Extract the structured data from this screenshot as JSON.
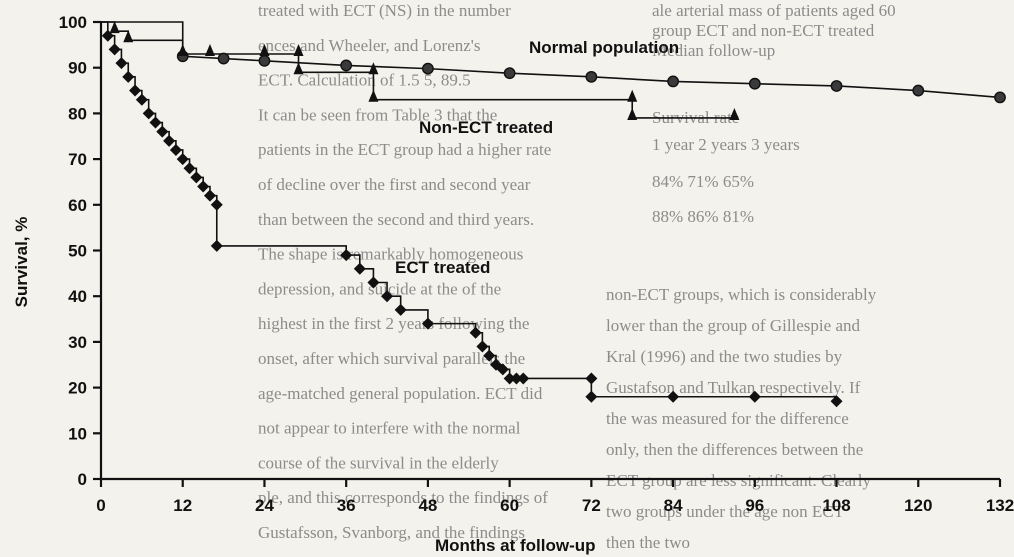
{
  "chart_data": {
    "type": "line",
    "title": "",
    "xlabel": "Months at follow-up",
    "ylabel": "Survival, %",
    "xlim": [
      0,
      132
    ],
    "ylim": [
      0,
      100
    ],
    "xticks": [
      0,
      12,
      24,
      36,
      48,
      60,
      72,
      84,
      96,
      108,
      120,
      132
    ],
    "yticks": [
      0,
      10,
      20,
      30,
      40,
      50,
      60,
      70,
      80,
      90,
      100
    ],
    "grid": false,
    "legend": "none (series labelled directly on plot)",
    "series": [
      {
        "name": "Normal population",
        "marker": "filled circle",
        "color": "#111111",
        "step_x": [
          0,
          12,
          12,
          132
        ],
        "x": [
          0,
          12,
          18,
          24,
          36,
          48,
          60,
          72,
          84,
          96,
          108,
          120,
          132
        ],
        "y": [
          100,
          92.5,
          92,
          91.5,
          90.5,
          89.8,
          88.8,
          88,
          87,
          86.5,
          86,
          85,
          83.5
        ]
      },
      {
        "name": "Non-ECT treated",
        "marker": "triangle",
        "color": "#111111",
        "x": [
          0,
          2,
          4,
          12,
          16,
          24,
          29,
          29,
          40,
          40,
          78,
          78,
          93
        ],
        "y": [
          100,
          98,
          96,
          93,
          93,
          93,
          93,
          89,
          89,
          83,
          83,
          79,
          79
        ]
      },
      {
        "name": "ECT treated",
        "marker": "filled diamond",
        "color": "#111111",
        "x": [
          0,
          1,
          2,
          3,
          4,
          5,
          6,
          7,
          8,
          9,
          10,
          11,
          12,
          13,
          14,
          15,
          16,
          17,
          17,
          36,
          38,
          40,
          42,
          44,
          48,
          55,
          56,
          57,
          58,
          59,
          60,
          61,
          62,
          72,
          72,
          84,
          96,
          108
        ],
        "y": [
          100,
          97,
          94,
          91,
          88,
          85,
          83,
          80,
          78,
          76,
          74,
          72,
          70,
          68,
          66,
          64,
          62,
          60,
          51,
          49,
          46,
          43,
          40,
          37,
          34,
          32,
          29,
          27,
          25,
          24,
          22,
          22,
          22,
          22,
          18,
          18,
          18,
          17
        ]
      }
    ],
    "series_labels": {
      "normal": "Normal population",
      "non_ect": "Non-ECT treated",
      "ect": "ECT treated"
    }
  },
  "background_text": {
    "left_column": [
      "treated with ECT (NS) in the number",
      "ences and Wheeler, and Lorenz's",
      "ECT. Calculation of 1.5 5, 89.5",
      "It can be seen from Table 3 that the",
      "patients in the ECT group had a higher rate",
      "of decline over the first and second year",
      "than between the second and third years.",
      "The shape is remarkably homogeneous",
      "depression, and suicide at the of the",
      "highest in the first 2 years following the",
      "onset, after which survival parallels the",
      "age-matched general population. ECT did",
      "not appear to interfere with the normal",
      "course of the survival in the elderly",
      "ple, and this corresponds to the findings of",
      "Gustafsson, Svanborg, and the findings"
    ],
    "right_column_top": [
      "ale arterial mass of patients aged 60",
      "group ECT and non-ECT treated",
      "Median follow-up",
      "Survival rate",
      "1 year    2 years    3 years",
      "84%       71%      65%",
      "88%       86%      81%"
    ],
    "right_column_bottom": [
      "non-ECT groups, which is considerably",
      "lower than the group of Gillespie and",
      "Kral (1996) and the two studies by",
      "Gustafson and Tulkan respectively. If",
      "the was measured for the difference",
      "only, then the differences between the",
      "ECT group are less significant. Clearly",
      "two groups under the age non ECT",
      "then the two"
    ]
  }
}
